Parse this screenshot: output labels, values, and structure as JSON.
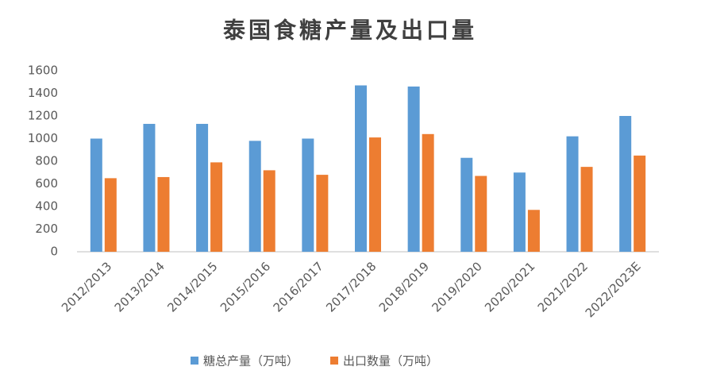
{
  "chart_data": {
    "type": "bar",
    "title": "泰国食糖产量及出口量",
    "categories": [
      "2012/2013",
      "2013/2014",
      "2014/2015",
      "2015/2016",
      "2016/2017",
      "2017/2018",
      "2018/2019",
      "2019/2020",
      "2020/2021",
      "2021/2022",
      "2022/2023E"
    ],
    "series": [
      {
        "name": "糖总产量（万吨）",
        "color": "#5b9bd5",
        "values": [
          1000,
          1130,
          1130,
          980,
          1000,
          1470,
          1460,
          830,
          700,
          1020,
          1200
        ]
      },
      {
        "name": "出口数量（万吨）",
        "color": "#ed7d31",
        "values": [
          650,
          660,
          790,
          720,
          680,
          1010,
          1040,
          670,
          370,
          750,
          850
        ]
      }
    ],
    "ylim": [
      0,
      1600
    ],
    "yticks": [
      0,
      200,
      400,
      600,
      800,
      1000,
      1200,
      1400,
      1600
    ],
    "grid": false,
    "legend": "bottom"
  }
}
